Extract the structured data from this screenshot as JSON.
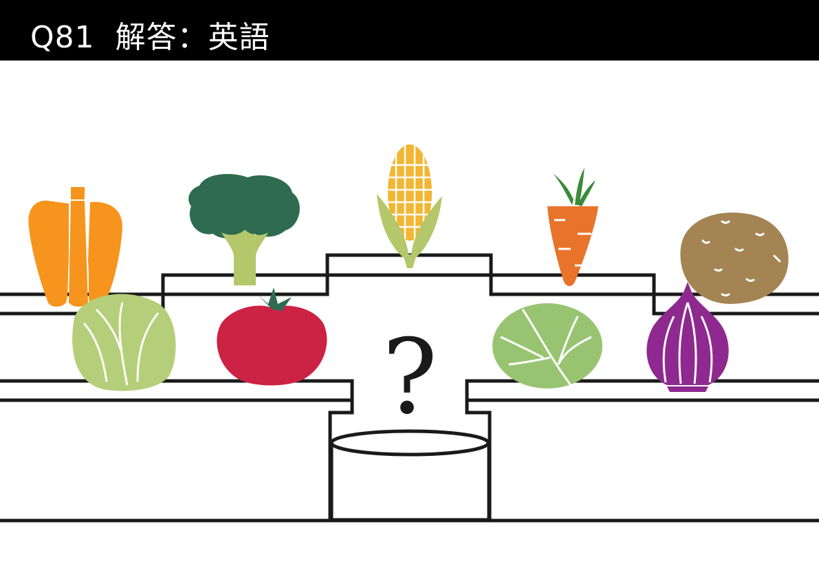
{
  "header": {
    "title": "Q81  解答：英語"
  },
  "puzzle": {
    "question_mark": "?"
  },
  "vegetables": [
    {
      "name": "bell-pepper-icon",
      "color": "#F7941D"
    },
    {
      "name": "broccoli-icon",
      "color": "#2F6B50"
    },
    {
      "name": "corn-icon",
      "color": "#F2B632"
    },
    {
      "name": "carrot-icon",
      "color": "#E8732A"
    },
    {
      "name": "potato-icon",
      "color": "#A58453"
    },
    {
      "name": "lettuce-icon",
      "color": "#B5CE7A"
    },
    {
      "name": "tomato-icon",
      "color": "#CC2244"
    },
    {
      "name": "cabbage-icon",
      "color": "#98C472"
    },
    {
      "name": "onion-icon",
      "color": "#8E2A8F"
    }
  ]
}
